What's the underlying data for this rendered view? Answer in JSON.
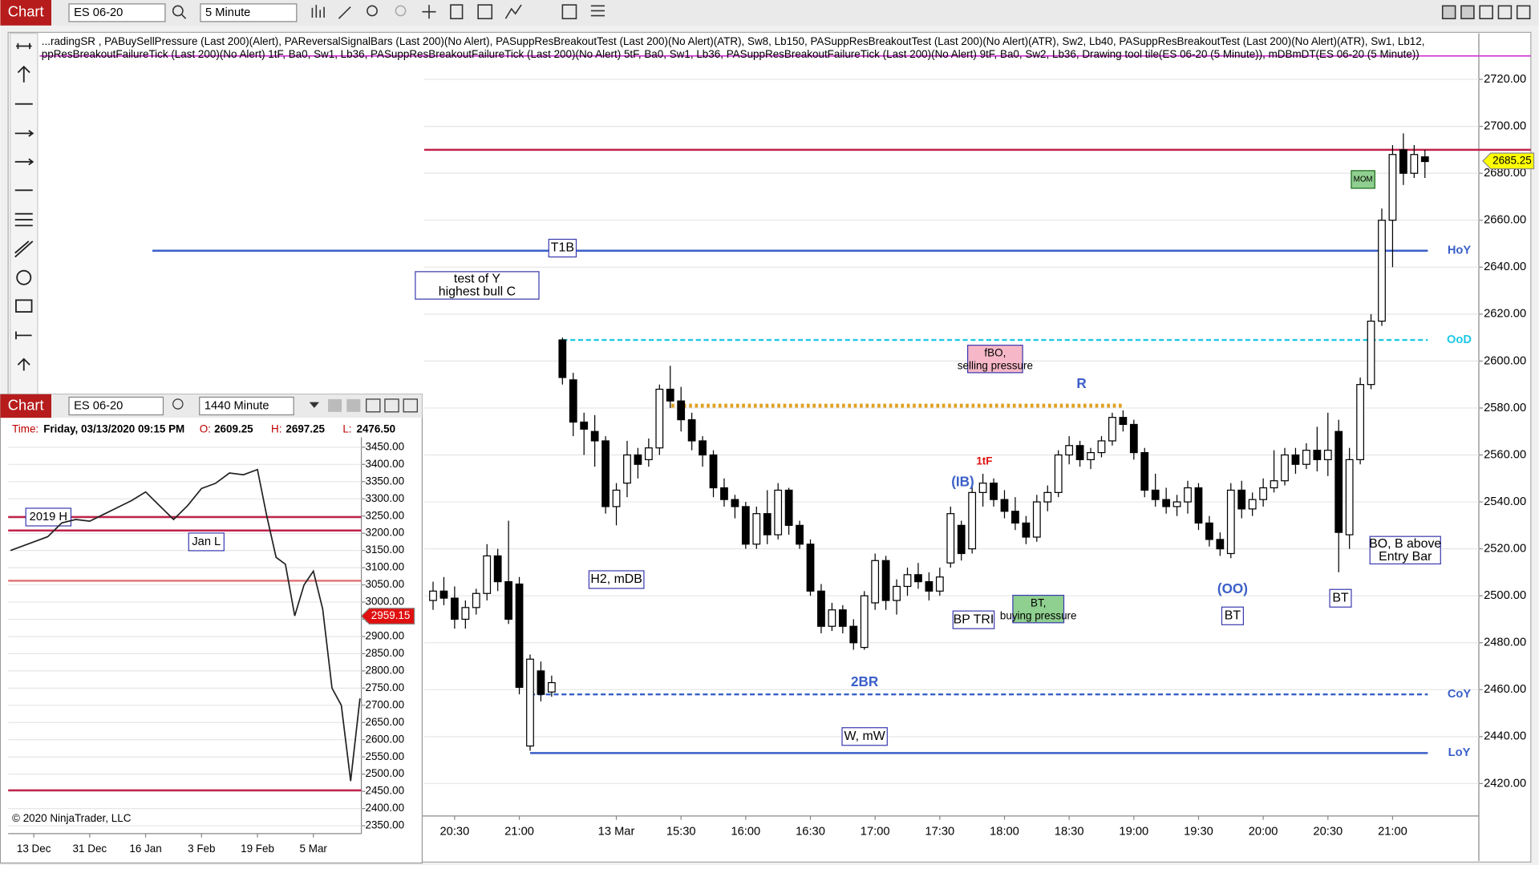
{
  "toolbar": {
    "label": "Chart",
    "instrument": "ES 06-20",
    "interval": "5 Minute"
  },
  "indicators": [
    "...radingSR , PABuySellPressure (Last 200)(Alert), PAReversalSignalBars (Last 200)(No Alert), PASuppResBreakoutTest (Last 200)(No Alert)(ATR),  Sw8,  Lb150, PASuppResBreakoutTest (Last 200)(No Alert)(ATR),  Sw2,  Lb40, PASuppResBreakoutTest (Last 200)(No Alert)(ATR),  Sw1,  Lb12,",
    "ppResBreakoutFailureTick (Last 200)(No Alert) 1tF,  Ba0,  Sw1,  Lb36, PASuppResBreakoutFailureTick (Last 200)(No Alert) 5tF,  Ba0,  Sw1,  Lb36, PASuppResBreakoutFailureTick (Last 200)(No Alert) 9tF,  Ba0,  Sw2,  Lb36, Drawing tool tile(ES 06-20 (5 Minute)), mDBmDT(ES 06-20 (5 Minute))"
  ],
  "inset_header": {
    "label": "Chart",
    "instrument": "ES 06-20",
    "interval": "1440 Minute",
    "time_label": "Time:",
    "time": "Friday, 03/13/2020 09:15 PM",
    "o_label": "O:",
    "o": "2609.25",
    "h_label": "H:",
    "h": "2697.25",
    "l_label": "L:",
    "l": "2476.50"
  },
  "copyright": "© 2020 NinjaTrader, LLC",
  "chart_data": [
    {
      "type": "candlestick",
      "xlim": [
        -38.5,
        95
      ],
      "ylim": [
        2406.2,
        2739.2
      ],
      "yticks": [
        {
          "value": 2420,
          "label": "2420.00"
        },
        {
          "value": 2440,
          "label": "2440.00"
        },
        {
          "value": 2460,
          "label": "2460.00"
        },
        {
          "value": 2480,
          "label": "2480.00"
        },
        {
          "value": 2500,
          "label": "2500.00"
        },
        {
          "value": 2520,
          "label": "2520.00"
        },
        {
          "value": 2540,
          "label": "2540.00"
        },
        {
          "value": 2560,
          "label": "2560.00"
        },
        {
          "value": 2580,
          "label": "2580.00"
        },
        {
          "value": 2600,
          "label": "2600.00"
        },
        {
          "value": 2620,
          "label": "2620.00"
        },
        {
          "value": 2640,
          "label": "2640.00"
        },
        {
          "value": 2660,
          "label": "2660.00"
        },
        {
          "value": 2680,
          "label": "2680.00"
        },
        {
          "value": 2700,
          "label": "2700.00"
        },
        {
          "value": 2720,
          "label": "2720.00"
        }
      ],
      "xticks": [
        {
          "value": 0,
          "label": "20:30"
        },
        {
          "value": 6,
          "label": "21:00"
        },
        {
          "value": 15,
          "label": "13 Mar"
        },
        {
          "value": 21,
          "label": "15:30"
        },
        {
          "value": 27,
          "label": "16:00"
        },
        {
          "value": 33,
          "label": "16:30"
        },
        {
          "value": 39,
          "label": "17:00"
        },
        {
          "value": 45,
          "label": "17:30"
        },
        {
          "value": 51,
          "label": "18:00"
        },
        {
          "value": 57,
          "label": "18:30"
        },
        {
          "value": 63,
          "label": "19:00"
        },
        {
          "value": 69,
          "label": "19:30"
        },
        {
          "value": 75,
          "label": "20:00"
        },
        {
          "value": 81,
          "label": "20:30"
        },
        {
          "value": 87,
          "label": "21:00"
        }
      ],
      "x": [
        -2,
        -1,
        0,
        1,
        2,
        3,
        4,
        5,
        6,
        7,
        8,
        9,
        10,
        11,
        12,
        13,
        14,
        15,
        16,
        17,
        18,
        19,
        20,
        21,
        22,
        23,
        24,
        25,
        26,
        27,
        28,
        29,
        30,
        31,
        32,
        33,
        34,
        35,
        36,
        37,
        38,
        39,
        40,
        41,
        42,
        43,
        44,
        45,
        46,
        47,
        48,
        49,
        50,
        51,
        52,
        53,
        54,
        55,
        56,
        57,
        58,
        59,
        60,
        61,
        62,
        63,
        64,
        65,
        66,
        67,
        68,
        69,
        70,
        71,
        72,
        73,
        74,
        75,
        76,
        77,
        78,
        79,
        80,
        81,
        82,
        83,
        84,
        85,
        86,
        87,
        88,
        89,
        90
      ],
      "ohlc": [
        [
          2498,
          2506,
          2494,
          2502
        ],
        [
          2502,
          2508,
          2496,
          2499
        ],
        [
          2499,
          2504,
          2486,
          2490
        ],
        [
          2490,
          2498,
          2486,
          2495
        ],
        [
          2495,
          2503,
          2492,
          2501
        ],
        [
          2501,
          2522,
          2498,
          2517
        ],
        [
          2517,
          2520,
          2502,
          2506
        ],
        [
          2506,
          2532,
          2488,
          2490
        ],
        [
          2505,
          2508,
          2458,
          2461
        ],
        [
          2436,
          2475,
          2434,
          2473
        ],
        [
          2468,
          2472,
          2455,
          2458
        ],
        [
          2459,
          2466,
          2457,
          2463
        ],
        [
          2609,
          2610,
          2590,
          2593
        ],
        [
          2592,
          2595,
          2568,
          2574
        ],
        [
          2574,
          2578,
          2560,
          2571
        ],
        [
          2570,
          2577,
          2555,
          2566
        ],
        [
          2566,
          2568,
          2535,
          2538
        ],
        [
          2538,
          2548,
          2530,
          2545
        ],
        [
          2548,
          2566,
          2542,
          2560
        ],
        [
          2560,
          2563,
          2550,
          2556
        ],
        [
          2558,
          2567,
          2555,
          2563
        ],
        [
          2563,
          2590,
          2560,
          2588
        ],
        [
          2588,
          2598,
          2580,
          2583
        ],
        [
          2583,
          2589,
          2570,
          2575
        ],
        [
          2575,
          2578,
          2562,
          2566
        ],
        [
          2566,
          2568,
          2555,
          2560
        ],
        [
          2560,
          2562,
          2542,
          2546
        ],
        [
          2546,
          2550,
          2538,
          2541
        ],
        [
          2541,
          2543,
          2533,
          2538
        ],
        [
          2538,
          2540,
          2520,
          2522
        ],
        [
          2522,
          2538,
          2520,
          2535
        ],
        [
          2535,
          2545,
          2522,
          2526
        ],
        [
          2526,
          2548,
          2524,
          2545
        ],
        [
          2545,
          2546,
          2526,
          2530
        ],
        [
          2530,
          2532,
          2520,
          2522
        ],
        [
          2522,
          2524,
          2500,
          2502
        ],
        [
          2502,
          2505,
          2484,
          2487
        ],
        [
          2487,
          2497,
          2485,
          2494
        ],
        [
          2494,
          2496,
          2484,
          2487
        ],
        [
          2487,
          2490,
          2477,
          2480
        ],
        [
          2478,
          2502,
          2477,
          2500
        ],
        [
          2497,
          2518,
          2494,
          2515
        ],
        [
          2515,
          2517,
          2494,
          2498
        ],
        [
          2498,
          2507,
          2492,
          2504
        ],
        [
          2504,
          2512,
          2500,
          2509
        ],
        [
          2509,
          2514,
          2503,
          2506
        ],
        [
          2506,
          2510,
          2498,
          2502
        ],
        [
          2502,
          2512,
          2500,
          2508
        ],
        [
          2514,
          2538,
          2512,
          2535
        ],
        [
          2530,
          2532,
          2515,
          2518
        ],
        [
          2520,
          2547,
          2518,
          2544
        ],
        [
          2544,
          2552,
          2538,
          2548
        ],
        [
          2548,
          2550,
          2538,
          2541
        ],
        [
          2541,
          2545,
          2533,
          2536
        ],
        [
          2536,
          2542,
          2528,
          2531
        ],
        [
          2531,
          2534,
          2522,
          2525
        ],
        [
          2525,
          2543,
          2523,
          2540
        ],
        [
          2540,
          2547,
          2536,
          2544
        ],
        [
          2544,
          2562,
          2542,
          2560
        ],
        [
          2560,
          2568,
          2556,
          2564
        ],
        [
          2564,
          2566,
          2555,
          2558
        ],
        [
          2558,
          2563,
          2554,
          2561
        ],
        [
          2561,
          2568,
          2559,
          2566
        ],
        [
          2566,
          2578,
          2564,
          2576
        ],
        [
          2576,
          2579,
          2570,
          2573
        ],
        [
          2573,
          2575,
          2558,
          2561
        ],
        [
          2561,
          2563,
          2542,
          2545
        ],
        [
          2545,
          2552,
          2538,
          2541
        ],
        [
          2541,
          2546,
          2535,
          2538
        ],
        [
          2538,
          2543,
          2534,
          2540
        ],
        [
          2540,
          2549,
          2535,
          2546
        ],
        [
          2546,
          2548,
          2528,
          2531
        ],
        [
          2531,
          2534,
          2521,
          2524
        ],
        [
          2524,
          2527,
          2517,
          2520
        ],
        [
          2518,
          2548,
          2516,
          2545
        ],
        [
          2545,
          2549,
          2533,
          2537
        ],
        [
          2537,
          2544,
          2534,
          2541
        ],
        [
          2541,
          2550,
          2538,
          2546
        ],
        [
          2546,
          2562,
          2544,
          2549
        ],
        [
          2549,
          2563,
          2547,
          2560
        ],
        [
          2560,
          2563,
          2552,
          2556
        ],
        [
          2556,
          2565,
          2554,
          2562
        ],
        [
          2562,
          2572,
          2553,
          2558
        ],
        [
          2558,
          2578,
          2551,
          2562
        ],
        [
          2570,
          2575,
          2510,
          2527
        ],
        [
          2526,
          2563,
          2520,
          2558
        ],
        [
          2558,
          2593,
          2556,
          2590
        ],
        [
          2590,
          2620,
          2588,
          2617
        ],
        [
          2617,
          2665,
          2615,
          2660
        ],
        [
          2660,
          2692,
          2640,
          2688
        ],
        [
          2690,
          2697,
          2675,
          2680
        ],
        [
          2680,
          2692,
          2678,
          2688
        ],
        [
          2687,
          2690,
          2678,
          2685
        ]
      ],
      "levels": [
        {
          "value": 2690,
          "color": "#c0234b"
        },
        {
          "value": 2647,
          "color": "#3a5fc8",
          "label": "HoY"
        },
        {
          "value": 2609,
          "color": "#1ec8e6",
          "label": "OoD",
          "dashed": true
        },
        {
          "value": 2581,
          "color": "#e0a020",
          "dotted": true
        },
        {
          "value": 2458,
          "color": "#3a5fc8",
          "label": "CoY",
          "dashed": true
        },
        {
          "value": 2433,
          "color": "#3a5fc8",
          "label": "LoY"
        }
      ],
      "last_price": 2685.25,
      "annotations": [
        "T1B",
        "test of Y highest bull C",
        "H2, mDB",
        "fBO, selling pressure",
        "R",
        "(IB)",
        "1tF",
        "BP TRI",
        "BT, buying pressure",
        "2BR",
        "W, mW",
        "(OO)",
        "BT",
        "BT",
        "BO, B above Entry Bar",
        "MOM"
      ]
    },
    {
      "type": "line",
      "xlim": [
        -5.5,
        70.3
      ],
      "ylim": [
        2327.2,
        3472.8
      ],
      "yticks": [
        {
          "value": 2350,
          "label": "2350.00"
        },
        {
          "value": 2400,
          "label": "2400.00"
        },
        {
          "value": 2450,
          "label": "2450.00"
        },
        {
          "value": 2500,
          "label": "2500.00"
        },
        {
          "value": 2550,
          "label": "2550.00"
        },
        {
          "value": 2600,
          "label": "2600.00"
        },
        {
          "value": 2650,
          "label": "2650.00"
        },
        {
          "value": 2700,
          "label": "2700.00"
        },
        {
          "value": 2750,
          "label": "2750.00"
        },
        {
          "value": 2800,
          "label": "2800.00"
        },
        {
          "value": 2850,
          "label": "2850.00"
        },
        {
          "value": 2900,
          "label": "2900.00"
        },
        {
          "value": 2950,
          "label": "2950.00"
        },
        {
          "value": 3000,
          "label": "3000.00"
        },
        {
          "value": 3050,
          "label": "3050.00"
        },
        {
          "value": 3100,
          "label": "3100.00"
        },
        {
          "value": 3150,
          "label": "3150.00"
        },
        {
          "value": 3200,
          "label": "3200.00"
        },
        {
          "value": 3250,
          "label": "3250.00"
        },
        {
          "value": 3300,
          "label": "3300.00"
        },
        {
          "value": 3350,
          "label": "3350.00"
        },
        {
          "value": 3400,
          "label": "3400.00"
        },
        {
          "value": 3450,
          "label": "3450.00"
        }
      ],
      "xticks": [
        {
          "value": 0,
          "label": "13 Dec"
        },
        {
          "value": 12,
          "label": "31 Dec"
        },
        {
          "value": 24,
          "label": "16 Jan"
        },
        {
          "value": 36,
          "label": "3 Feb"
        },
        {
          "value": 48,
          "label": "19 Feb"
        },
        {
          "value": 60,
          "label": "5 Mar"
        }
      ],
      "x": [
        -5,
        0,
        3,
        6,
        9,
        12,
        15,
        18,
        21,
        24,
        27,
        30,
        33,
        36,
        39,
        42,
        45,
        48,
        50,
        52,
        54,
        56,
        58,
        60,
        62,
        64,
        66,
        68,
        70
      ],
      "series": [
        {
          "color": "#222222",
          "values": [
            3150,
            3175,
            3190,
            3230,
            3240,
            3235,
            3255,
            3275,
            3295,
            3320,
            3280,
            3240,
            3280,
            3330,
            3345,
            3375,
            3370,
            3385,
            3250,
            3130,
            3110,
            2960,
            3050,
            3090,
            2980,
            2750,
            2700,
            2480,
            2720
          ]
        }
      ],
      "levels": [
        {
          "value": 3247,
          "color": "#c0234b",
          "label": "2019 H"
        },
        {
          "value": 3208,
          "color": "#c0234b"
        },
        {
          "value": 3062,
          "color": "#e07070"
        },
        {
          "value": 2453,
          "color": "#c0234b"
        }
      ],
      "last_price": 2959.15,
      "annotations": [
        "Jan L"
      ]
    }
  ]
}
